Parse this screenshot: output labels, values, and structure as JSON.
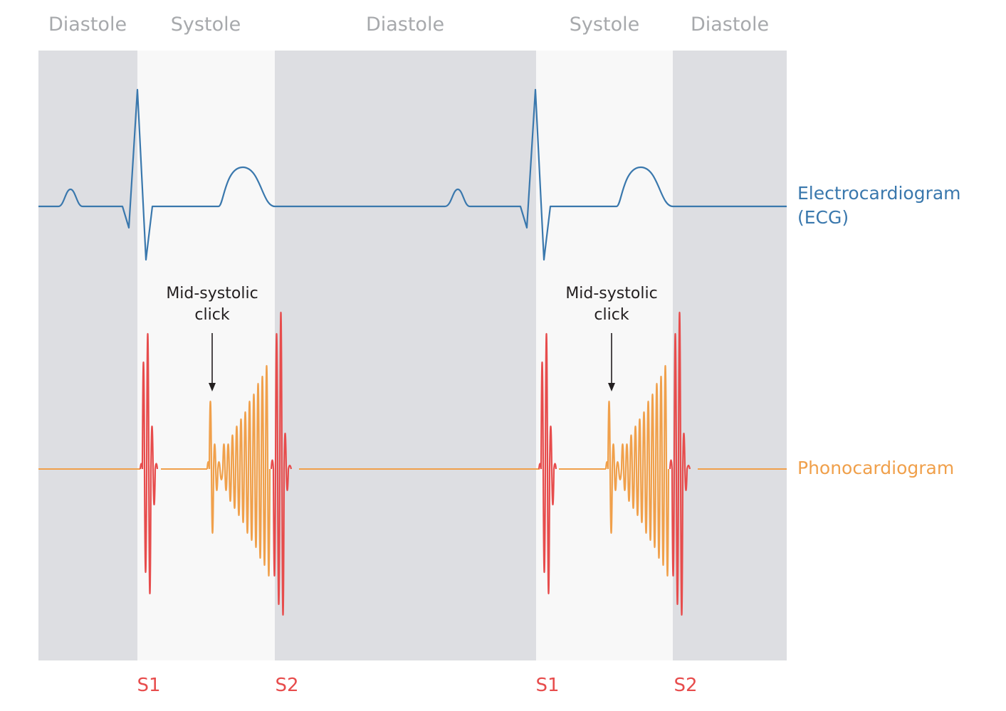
{
  "phases": [
    {
      "label": "Diastole",
      "kind": "diastole"
    },
    {
      "label": "Systole",
      "kind": "systole"
    },
    {
      "label": "Diastole",
      "kind": "diastole"
    },
    {
      "label": "Systole",
      "kind": "systole"
    },
    {
      "label": "Diastole",
      "kind": "diastole"
    }
  ],
  "heart_sounds": [
    "S1",
    "S2",
    "S1",
    "S2"
  ],
  "annotations": [
    {
      "line1": "Mid-systolic",
      "line2": "click"
    },
    {
      "line1": "Mid-systolic",
      "line2": "click"
    }
  ],
  "traces": {
    "ecg": {
      "line1": "Electrocardiogram",
      "line2": "(ECG)",
      "color": "#3a78ad"
    },
    "pcg": {
      "label": "Phonocardiogram",
      "color": "#f0a04b"
    }
  },
  "colors": {
    "diastole_bg": "#dddee2",
    "systole_bg": "#f8f8f8",
    "s1_s2_wave": "#e74c4c",
    "click_wave": "#f0a04b",
    "phase_text": "#a7a9ac",
    "arrow": "#231f20"
  }
}
